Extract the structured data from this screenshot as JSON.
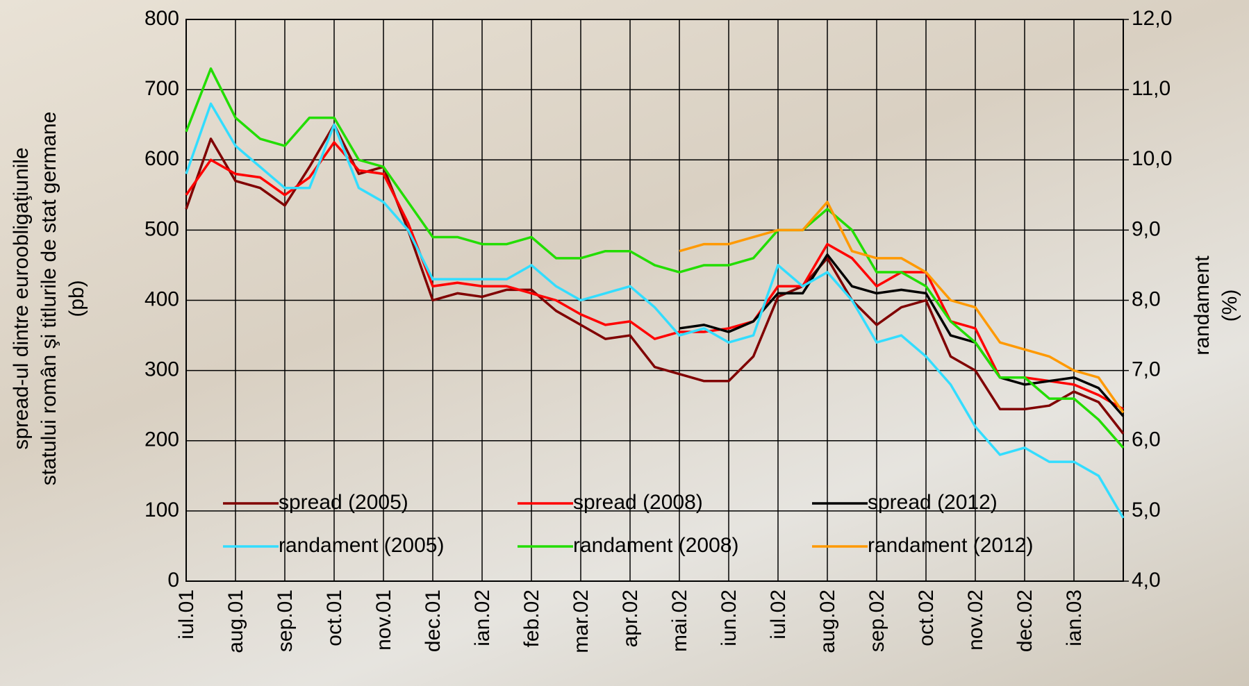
{
  "chart_data": {
    "type": "line",
    "y_label": [
      "spread-ul dintre euroobligaţiunile",
      "statului român şi titlurile de stat germane",
      "(pb)"
    ],
    "y2_label": [
      "randament",
      "(%)"
    ],
    "categories": [
      "iul.01",
      null,
      "aug.01",
      null,
      "sep.01",
      null,
      "oct.01",
      null,
      "nov.01",
      null,
      "dec.01",
      null,
      "ian.02",
      null,
      "feb.02",
      null,
      "mar.02",
      null,
      "apr.02",
      null,
      "mai.02",
      null,
      "iun.02",
      null,
      "iul.02",
      null,
      "aug.02",
      null,
      "sep.02",
      null,
      "oct.02",
      null,
      "nov.02",
      null,
      "dec.02",
      null,
      "ian.03",
      null,
      null
    ],
    "ylim": [
      0,
      800
    ],
    "yticks": [
      0,
      100,
      200,
      300,
      400,
      500,
      600,
      700,
      800
    ],
    "y2lim": [
      4,
      12
    ],
    "y2ticks": [
      {
        "value": 4,
        "label": "4,0"
      },
      {
        "value": 5,
        "label": "5,0"
      },
      {
        "value": 6,
        "label": "6,0"
      },
      {
        "value": 7,
        "label": "7,0"
      },
      {
        "value": 8,
        "label": "8,0"
      },
      {
        "value": 9,
        "label": "9,0"
      },
      {
        "value": 10,
        "label": "10,0"
      },
      {
        "value": 11,
        "label": "11,0"
      },
      {
        "value": 12,
        "label": "12,0"
      }
    ],
    "grid": true,
    "series": [
      {
        "name": "spread (2005)",
        "color": "#800000",
        "values": [
          530,
          630,
          570,
          560,
          535,
          590,
          650,
          580,
          590,
          500,
          400,
          410,
          405,
          415,
          415,
          385,
          365,
          345,
          350,
          305,
          295,
          285,
          285,
          320,
          405,
          420,
          460,
          400,
          365,
          390,
          400,
          320,
          300,
          245,
          245,
          250,
          270,
          255,
          210
        ]
      },
      {
        "name": "spread (2008)",
        "color": "#ff0000",
        "values": [
          550,
          600,
          580,
          575,
          550,
          575,
          625,
          585,
          580,
          510,
          420,
          425,
          420,
          420,
          410,
          400,
          380,
          365,
          370,
          345,
          355,
          355,
          360,
          370,
          420,
          420,
          480,
          460,
          420,
          440,
          440,
          370,
          360,
          290,
          290,
          285,
          280,
          265,
          245
        ]
      },
      {
        "name": "spread (2012)",
        "color": "#000000",
        "values": [
          null,
          null,
          null,
          null,
          null,
          null,
          null,
          null,
          null,
          null,
          null,
          null,
          null,
          null,
          null,
          null,
          null,
          null,
          null,
          null,
          360,
          365,
          355,
          370,
          410,
          410,
          465,
          420,
          410,
          415,
          410,
          350,
          340,
          290,
          280,
          285,
          290,
          275,
          235
        ]
      },
      {
        "name": "randament (2005)",
        "color": "#33ddff",
        "axis": "y2",
        "values": [
          9.8,
          10.8,
          10.2,
          9.9,
          9.6,
          9.6,
          10.5,
          9.6,
          9.4,
          9.0,
          8.3,
          8.3,
          8.3,
          8.3,
          8.5,
          8.2,
          8.0,
          8.1,
          8.2,
          7.9,
          7.5,
          7.6,
          7.4,
          7.5,
          8.5,
          8.2,
          8.4,
          8.0,
          7.4,
          7.5,
          7.2,
          6.8,
          6.2,
          5.8,
          5.9,
          5.7,
          5.7,
          5.5,
          4.9
        ]
      },
      {
        "name": "randament (2008)",
        "color": "#22dd00",
        "axis": "y2",
        "values": [
          10.4,
          11.3,
          10.6,
          10.3,
          10.2,
          10.6,
          10.6,
          10.0,
          9.9,
          9.4,
          8.9,
          8.9,
          8.8,
          8.8,
          8.9,
          8.6,
          8.6,
          8.7,
          8.7,
          8.5,
          8.4,
          8.5,
          8.5,
          8.6,
          9.0,
          9.0,
          9.3,
          9.0,
          8.4,
          8.4,
          8.2,
          7.7,
          7.4,
          6.9,
          6.9,
          6.6,
          6.6,
          6.3,
          5.9
        ]
      },
      {
        "name": "randament (2012)",
        "color": "#ff9900",
        "axis": "y2",
        "values": [
          null,
          null,
          null,
          null,
          null,
          null,
          null,
          null,
          null,
          null,
          null,
          null,
          null,
          null,
          null,
          null,
          null,
          null,
          null,
          null,
          8.7,
          8.8,
          8.8,
          8.9,
          9.0,
          9.0,
          9.4,
          8.7,
          8.6,
          8.6,
          8.4,
          8.0,
          7.9,
          7.4,
          7.3,
          7.2,
          7.0,
          6.9,
          6.4
        ]
      }
    ]
  }
}
